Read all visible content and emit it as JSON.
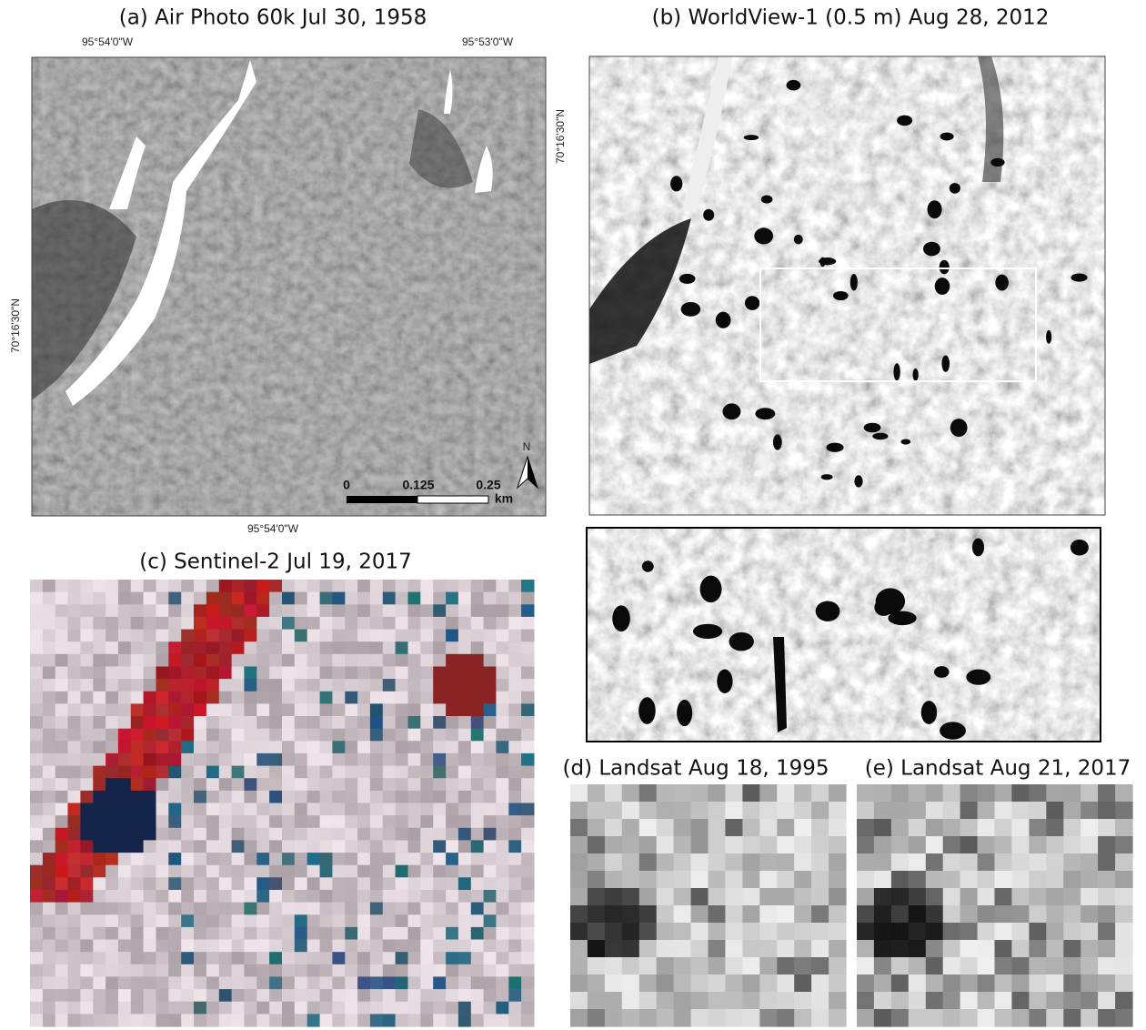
{
  "panels": [
    {
      "title": "(a) Air Photo 60k Jul 30, 1958",
      "top_labels": [
        "95°54'0\"W",
        "95°53'0\"W"
      ],
      "bottom_label": "95°54'0\"W",
      "left_label": "70°16'30\"N",
      "right_label": "70°16'30\"N",
      "scale_labels": [
        "0",
        "0.125",
        "0.25"
      ],
      "scale_unit": "km",
      "north": "N"
    },
    {
      "title": "(b) WorldView-1 (0.5 m) Aug 28, 2012"
    },
    {
      "title": "(c) Sentinel-2 Jul 19, 2017"
    },
    {
      "title": "(d) Landsat Aug 18, 1995"
    },
    {
      "title": "(e) Landsat Aug 21, 2017"
    }
  ]
}
